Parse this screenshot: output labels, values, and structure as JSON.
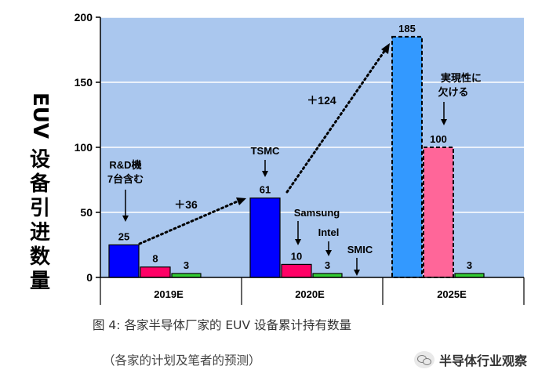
{
  "chart_data": {
    "type": "bar",
    "ylabel": "EUV 设备引进数量",
    "ylim": [
      0,
      200
    ],
    "yticks": [
      0,
      50,
      100,
      150,
      200
    ],
    "grid": true,
    "categories": [
      "2019E",
      "2020E",
      "2025E"
    ],
    "series": [
      {
        "name": "TSMC",
        "values": [
          25,
          61,
          185
        ],
        "color": "#0000ff",
        "projected": [
          false,
          false,
          true
        ]
      },
      {
        "name": "Samsung",
        "values": [
          8,
          10,
          100
        ],
        "color": "#ff0066",
        "projected": [
          false,
          false,
          true
        ]
      },
      {
        "name": "Intel",
        "values": [
          3,
          3,
          3
        ],
        "color": "#33cc33",
        "projected": [
          false,
          false,
          false
        ]
      }
    ],
    "value_labels": [
      {
        "category": "2019E",
        "series": "TSMC",
        "text": "25"
      },
      {
        "category": "2019E",
        "series": "Samsung",
        "text": "8"
      },
      {
        "category": "2019E",
        "series": "Intel",
        "text": "3"
      },
      {
        "category": "2020E",
        "series": "TSMC",
        "text": "61"
      },
      {
        "category": "2020E",
        "series": "Samsung",
        "text": "10"
      },
      {
        "category": "2020E",
        "series": "Intel",
        "text": "3"
      },
      {
        "category": "2025E",
        "series": "TSMC",
        "text": "185"
      },
      {
        "category": "2025E",
        "series": "Samsung",
        "text": "100"
      },
      {
        "category": "2025E",
        "series": "Intel",
        "text": "3"
      }
    ],
    "annotations": {
      "rd_note": [
        "R&D機",
        "7台含む"
      ],
      "tsmc": "TSMC",
      "samsung": "Samsung",
      "intel": "Intel",
      "smic": "SMIC",
      "lack_note": [
        "実現性に",
        "欠ける"
      ],
      "growth_2020": "＋36",
      "growth_2025": "＋124"
    },
    "colors": {
      "plot_bg": "#aac7ee",
      "grid": "#ffffff",
      "tsmc_projected": "#3399ff",
      "samsung_projected": "#ff6699"
    }
  },
  "caption": "图 4:  各家半导体厂家的 EUV 设备累计持有数量",
  "subcaption": "（各家的计划及笔者的预测）",
  "watermark": "半导体行业观察"
}
